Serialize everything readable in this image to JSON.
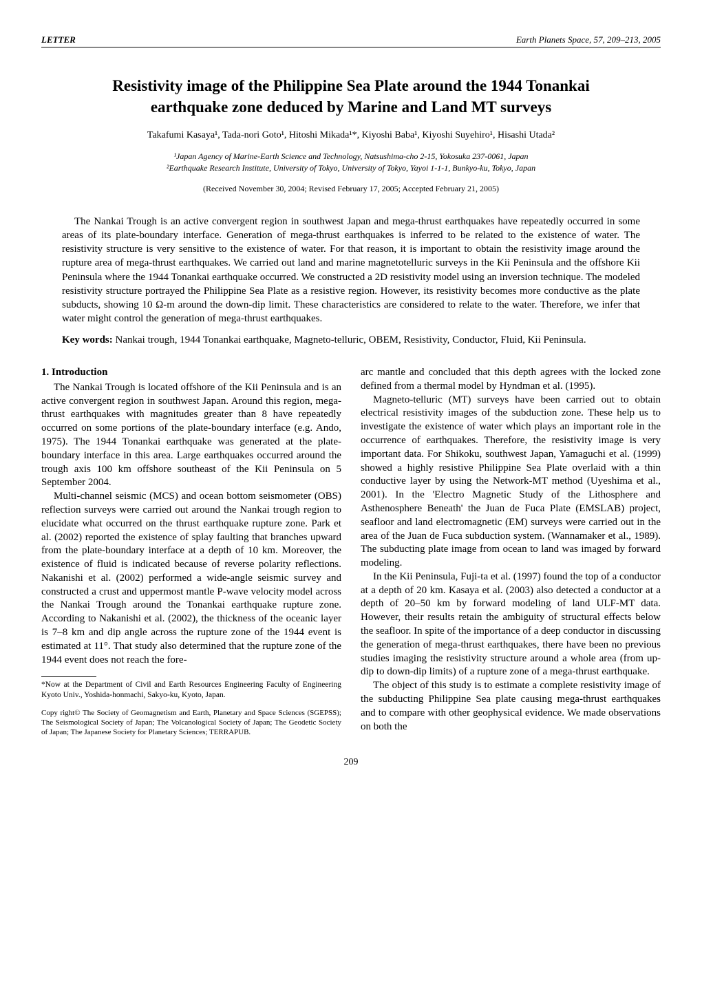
{
  "header": {
    "left": "LETTER",
    "right": "Earth Planets Space, 57, 209–213, 2005"
  },
  "title_line1": "Resistivity image of the Philippine Sea Plate around the 1944 Tonankai",
  "title_line2": "earthquake zone deduced by Marine and Land MT surveys",
  "authors": "Takafumi Kasaya¹, Tada-nori Goto¹, Hitoshi Mikada¹*, Kiyoshi Baba¹, Kiyoshi Suyehiro¹, Hisashi Utada²",
  "affil1": "¹Japan Agency of Marine-Earth Science and Technology, Natsushima-cho 2-15, Yokosuka 237-0061, Japan",
  "affil2": "²Earthquake Research Institute, University of Tokyo, University of Tokyo, Yayoi 1-1-1, Bunkyo-ku, Tokyo, Japan",
  "dates": "(Received November 30, 2004; Revised February 17, 2005; Accepted February 21, 2005)",
  "abstract": "The Nankai Trough is an active convergent region in southwest Japan and mega-thrust earthquakes have repeatedly occurred in some areas of its plate-boundary interface. Generation of mega-thrust earthquakes is inferred to be related to the existence of water. The resistivity structure is very sensitive to the existence of water. For that reason, it is important to obtain the resistivity image around the rupture area of mega-thrust earthquakes. We carried out land and marine magnetotelluric surveys in the Kii Peninsula and the offshore Kii Peninsula where the 1944 Tonankai earthquake occurred. We constructed a 2D resistivity model using an inversion technique. The modeled resistivity structure portrayed the Philippine Sea Plate as a resistive region. However, its resistivity becomes more conductive as the plate subducts, showing 10 Ω-m around the down-dip limit. These characteristics are considered to relate to the water. Therefore, we infer that water might control the generation of mega-thrust earthquakes.",
  "keywords_label": "Key words:",
  "keywords": " Nankai trough, 1944 Tonankai earthquake, Magneto-telluric, OBEM, Resistivity, Conductor, Fluid, Kii Peninsula.",
  "section1_heading": "1.   Introduction",
  "left_p1": "The Nankai Trough is located offshore of the Kii Peninsula and is an active convergent region in southwest Japan. Around this region, mega-thrust earthquakes with magnitudes greater than 8 have repeatedly occurred on some portions of the plate-boundary interface (e.g. Ando, 1975). The 1944 Tonankai earthquake was generated at the plate-boundary interface in this area. Large earthquakes occurred around the trough axis 100 km offshore southeast of the Kii Peninsula on 5 September 2004.",
  "left_p2": "Multi-channel seismic (MCS) and ocean bottom seismometer (OBS) reflection surveys were carried out around the Nankai trough region to elucidate what occurred on the thrust earthquake rupture zone. Park et al. (2002) reported the existence of splay faulting that branches upward from the plate-boundary interface at a depth of 10 km. Moreover, the existence of fluid is indicated because of reverse polarity reflections. Nakanishi et al. (2002) performed a wide-angle seismic survey and constructed a crust and uppermost mantle P-wave velocity model across the Nankai Trough around the Tonankai earthquake rupture zone. According to Nakanishi et al. (2002), the thickness of the oceanic layer is 7–8 km and dip angle across the rupture zone of the 1944 event is estimated at 11°. That study also determined that the rupture zone of the 1944 event does not reach the fore-",
  "footnote": "*Now at the Department of Civil and Earth Resources Engineering Faculty of Engineering Kyoto Univ., Yoshida-honmachi, Sakyo-ku, Kyoto, Japan.",
  "copyright": "Copy right© The Society of Geomagnetism and Earth, Planetary and Space Sciences (SGEPSS); The Seismological Society of Japan; The Volcanological Society of Japan; The Geodetic Society of Japan; The Japanese Society for Planetary Sciences; TERRAPUB.",
  "right_p1": "arc mantle and concluded that this depth agrees with the locked zone defined from a thermal model by Hyndman et al. (1995).",
  "right_p2": "Magneto-telluric (MT) surveys have been carried out to obtain electrical resistivity images of the subduction zone. These help us to investigate the existence of water which plays an important role in the occurrence of earthquakes. Therefore, the resistivity image is very important data. For Shikoku, southwest Japan, Yamaguchi et al. (1999) showed a highly resistive Philippine Sea Plate overlaid with a thin conductive layer by using the Network-MT method (Uyeshima et al., 2001). In the 'Electro Magnetic Study of the Lithosphere and Asthenosphere Beneath' the Juan de Fuca Plate (EMSLAB) project, seafloor and land electromagnetic (EM) surveys were carried out in the area of the Juan de Fuca subduction system. (Wannamaker et al., 1989). The subducting plate image from ocean to land was imaged by forward modeling.",
  "right_p3": "In the Kii Peninsula, Fuji-ta et al. (1997) found the top of a conductor at a depth of 20 km. Kasaya et al. (2003) also detected a conductor at a depth of 20–50 km by forward modeling of land ULF-MT data. However, their results retain the ambiguity of structural effects below the seafloor. In spite of the importance of a deep conductor in discussing the generation of mega-thrust earthquakes, there have been no previous studies imaging the resistivity structure around a whole area (from up-dip to down-dip limits) of a rupture zone of a mega-thrust earthquake.",
  "right_p4": "The object of this study is to estimate a complete resistivity image of the subducting Philippine Sea plate causing mega-thrust earthquakes and to compare with other geophysical evidence. We made observations on both the",
  "page_number": "209"
}
